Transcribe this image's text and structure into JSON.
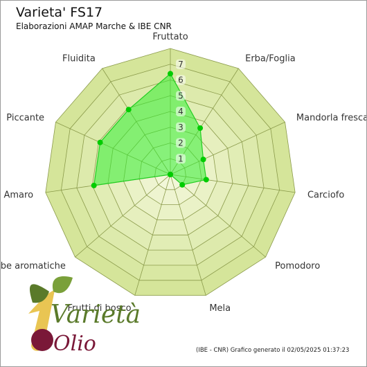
{
  "chart_data": {
    "type": "radar",
    "title": "Varieta' FS17",
    "subtitle": "Elaborazioni AMAP Marche & IBE CNR",
    "footer": "(IBE - CNR) Grafico generato il 02/05/2025 01:37:23",
    "categories": [
      "Fruttato",
      "Erba/Foglia",
      "Mandorla fresca",
      "Carciofo",
      "Pomodoro",
      "Mela",
      "Frutti di bosco",
      "Erbe aromatiche",
      "Amaro",
      "Piccante",
      "Fluidita"
    ],
    "values": [
      6.4,
      3.5,
      2.3,
      2.3,
      1.0,
      0,
      0,
      0,
      4.9,
      4.9,
      4.9
    ],
    "rmax": 8,
    "ticks": [
      1,
      2,
      3,
      4,
      5,
      6,
      7
    ],
    "colors": {
      "grid_fill_outer": "#d5e59a",
      "grid_fill_inner": "#f2f7d9",
      "grid_line": "#8a9a4a",
      "series_fill": "#33ee33",
      "series_stroke": "#22cc22",
      "point": "#00cc00"
    }
  },
  "logo": {
    "big_letter": "1",
    "line1": "Varietà",
    "line2": "Olio"
  }
}
